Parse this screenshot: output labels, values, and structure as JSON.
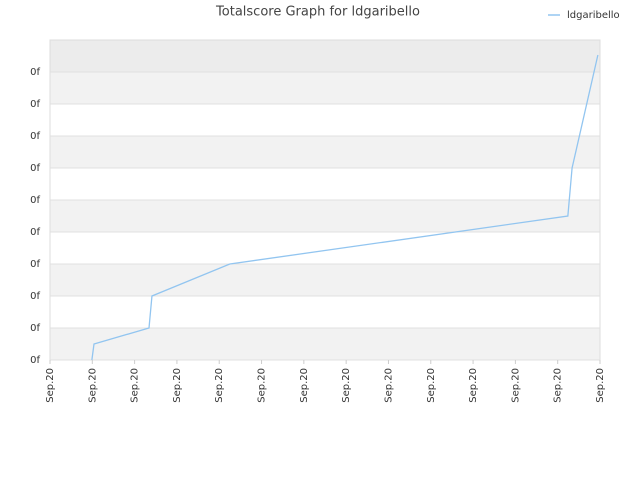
{
  "chart_data": {
    "type": "line",
    "title": "Totalscore Graph for ldgaribello",
    "x": [
      0.99,
      1.04,
      2.34,
      2.41,
      4.25,
      12.24,
      12.34,
      12.95
    ],
    "series": [
      {
        "name": "ldgaribello",
        "color": "#92c5f0",
        "values": [
          0,
          0.5,
          1.0,
          2.0,
          3.0,
          4.5,
          6.0,
          9.53
        ]
      }
    ],
    "xlim": [
      0,
      13
    ],
    "xticks": [
      {
        "value": 0,
        "label": "Sep.20"
      },
      {
        "value": 1,
        "label": "Sep.20"
      },
      {
        "value": 2,
        "label": "Sep.20"
      },
      {
        "value": 3,
        "label": "Sep.20"
      },
      {
        "value": 4,
        "label": "Sep.20"
      },
      {
        "value": 5,
        "label": "Sep.20"
      },
      {
        "value": 6,
        "label": "Sep.20"
      },
      {
        "value": 7,
        "label": "Sep.20"
      },
      {
        "value": 8,
        "label": "Sep.20"
      },
      {
        "value": 9,
        "label": "Sep.20"
      },
      {
        "value": 10,
        "label": "Sep.20"
      },
      {
        "value": 11,
        "label": "Sep.20"
      },
      {
        "value": 12,
        "label": "Sep.20"
      },
      {
        "value": 13,
        "label": "Sep.20"
      }
    ],
    "ylim": [
      0,
      10
    ],
    "yticks": [
      {
        "value": 0,
        "label": "0f"
      },
      {
        "value": 1,
        "label": "0f"
      },
      {
        "value": 2,
        "label": "0f"
      },
      {
        "value": 3,
        "label": "0f"
      },
      {
        "value": 4,
        "label": "0f"
      },
      {
        "value": 5,
        "label": "0f"
      },
      {
        "value": 6,
        "label": "0f"
      },
      {
        "value": 7,
        "label": "0f"
      },
      {
        "value": 8,
        "label": "0f"
      },
      {
        "value": 9,
        "label": "0f"
      }
    ],
    "grid": true,
    "legend": "top-right"
  }
}
